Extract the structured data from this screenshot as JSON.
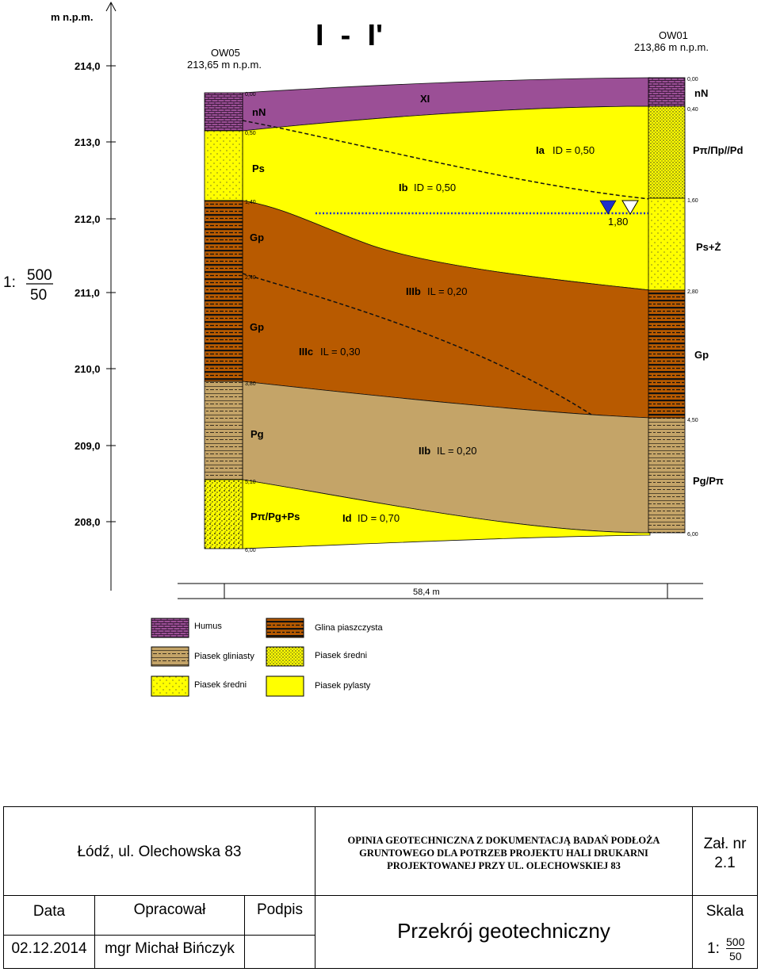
{
  "header": {
    "axis_unit": "m n.p.m.",
    "section_title": "I  -  I'"
  },
  "scale_label": {
    "prefix": "1:",
    "num": "500",
    "den": "50"
  },
  "elevation_ticks": [
    "214,0",
    "213,0",
    "212,0",
    "211,0",
    "210,0",
    "209,0",
    "208,0"
  ],
  "boreholes": [
    {
      "id": "OW05",
      "elevation": "213,65 m n.p.m.",
      "depths": [
        "0,00",
        "0,50",
        "1,40",
        "2,40",
        "3,80",
        "5,10",
        "6,00"
      ]
    },
    {
      "id": "OW01",
      "elevation": "213,86 m n.p.m.",
      "depths": [
        "0,00",
        "0,40",
        "1,60",
        "2,80",
        "4,50",
        "6,00"
      ]
    }
  ],
  "soil_codes": {
    "left": [
      "nN",
      "Ps",
      "Gp",
      "Gp",
      "Pg",
      "Pπ/Pg+Ps"
    ],
    "right": [
      "nN",
      "Pπ/Πp//Pd",
      "Ps+Ż",
      "Gp",
      "Pg/Pπ"
    ]
  },
  "layers": [
    {
      "code": "XI",
      "desc": ""
    },
    {
      "code": "Ia",
      "desc": "ID = 0,50"
    },
    {
      "code": "Ib",
      "desc": "ID = 0,50"
    },
    {
      "code": "IIIb",
      "desc": "IL = 0,20"
    },
    {
      "code": "IIIc",
      "desc": "IL = 0,30"
    },
    {
      "code": "IIb",
      "desc": "IL = 0,20"
    },
    {
      "code": "Id",
      "desc": "ID = 0,70"
    }
  ],
  "water_level": "1,80",
  "distance": "58,4 m",
  "legend": [
    {
      "label": "Humus",
      "pattern": "humus"
    },
    {
      "label": "Glina piaszczysta",
      "pattern": "glina"
    },
    {
      "label": "Piasek gliniasty",
      "pattern": "pglin"
    },
    {
      "label": "Piasek średni",
      "pattern": "psred-dense"
    },
    {
      "label": "Piasek średni",
      "pattern": "psred"
    },
    {
      "label": "Piasek pylasty",
      "pattern": "ppyl"
    }
  ],
  "colors": {
    "humus": "#9b4f96",
    "sand": "#ffff00",
    "loam": "#b85a00",
    "clayey_sand": "#c4a468",
    "water": "#1f2fcc"
  },
  "title_block": {
    "location": "Łódź, ul. Olechowska 83",
    "description": [
      "OPINIA GEOTECHNICZNA Z DOKUMENTACJĄ BADAŃ PODŁOŻA",
      "GRUNTOWEGO DLA POTRZEB PROJEKTU HALI DRUKARNI",
      "PROJEKTOWANEJ PRZY UL. OLECHOWSKIEJ 83"
    ],
    "attachment": [
      "Zał. nr",
      "2.1"
    ],
    "data_header": "Data",
    "author_header": "Opracował",
    "sign_header": "Podpis",
    "scale_header": "Skala",
    "date": "02.12.2014",
    "author": "mgr Michał Bińczyk",
    "drawing_title": "Przekrój geotechniczny",
    "scale": {
      "prefix": "1:",
      "num": "500",
      "den": "50"
    }
  }
}
